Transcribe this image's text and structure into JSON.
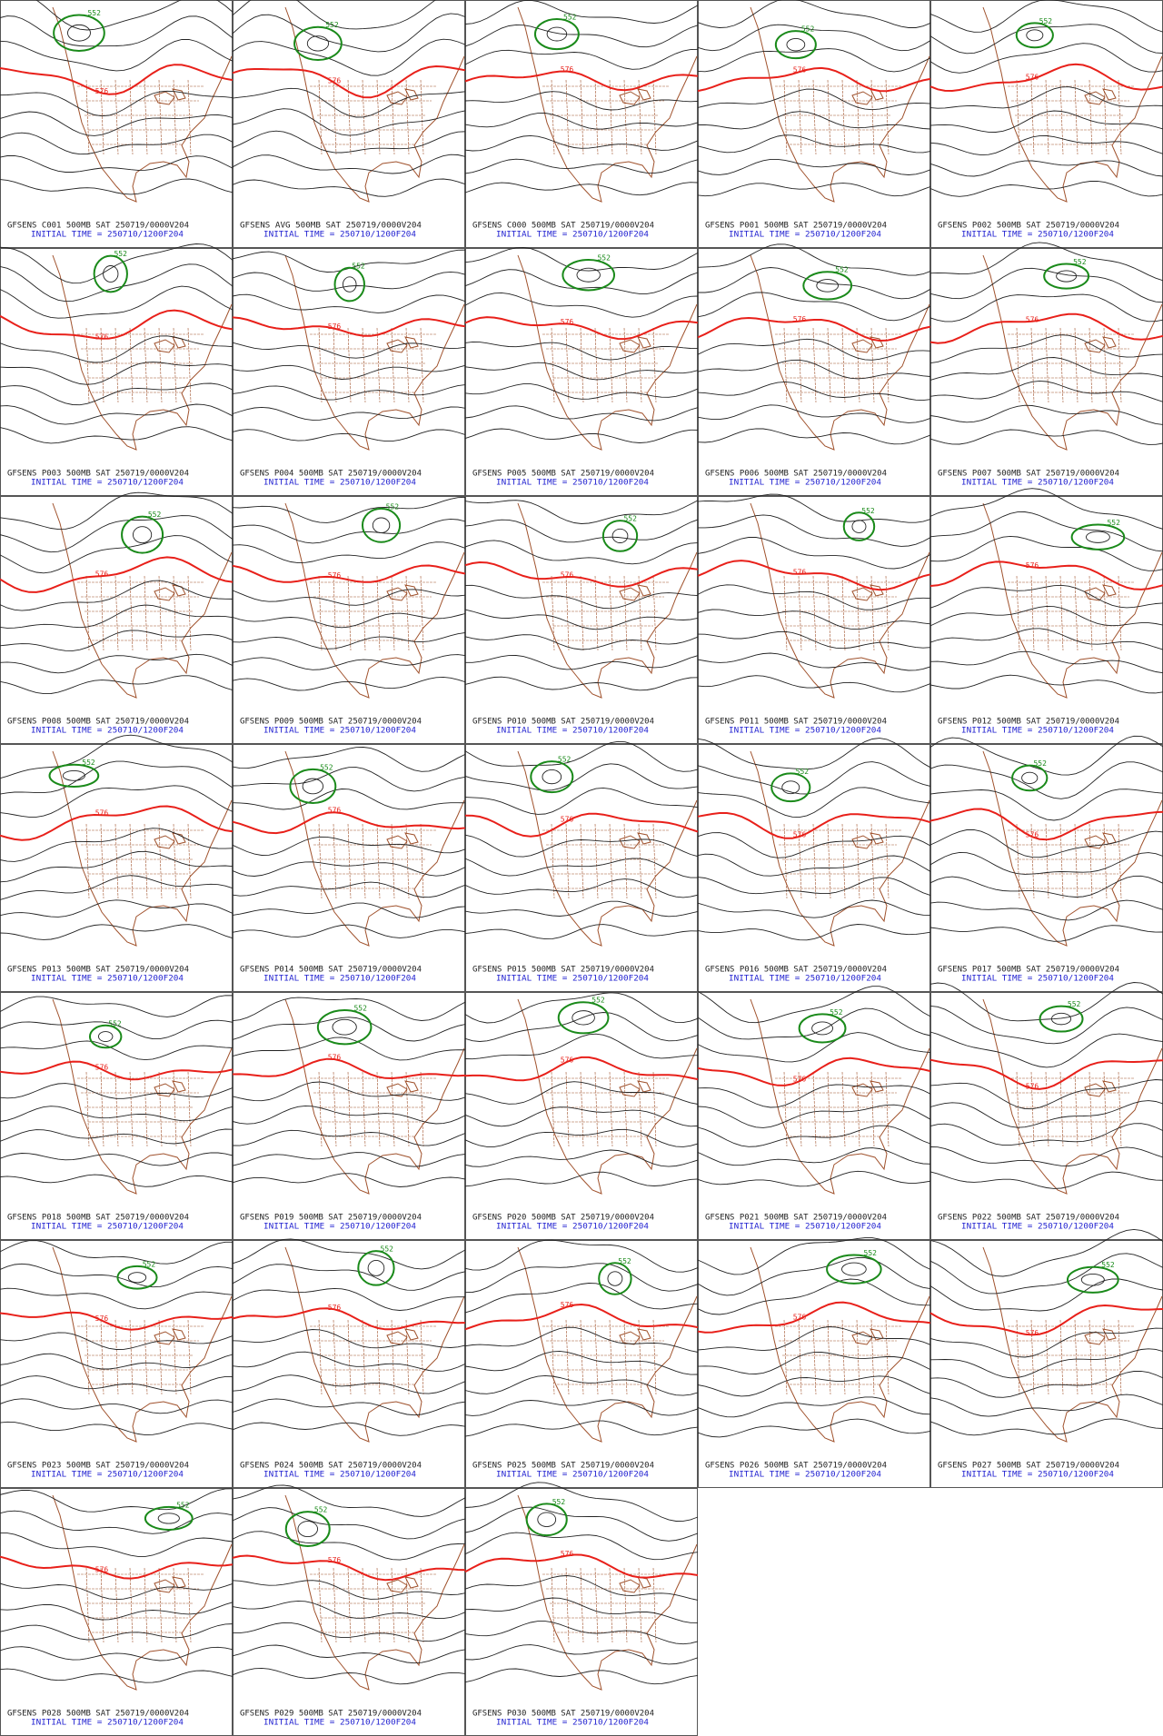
{
  "panels": [
    {
      "caption": "GFSENS C001 500MB SAT 250719/0000V204",
      "init": "INITIAL TIME = 250710/1200F204",
      "red_label": "576",
      "green_label": "552"
    },
    {
      "caption": "GFSENS AVG 500MB SAT 250719/0000V204",
      "init": "INITIAL TIME = 250710/1200F204",
      "red_label": "576",
      "green_label": "552"
    },
    {
      "caption": "GFSENS C000 500MB SAT 250719/0000V204",
      "init": "INITIAL TIME = 250710/1200F204",
      "red_label": "576",
      "green_label": "552"
    },
    {
      "caption": "GFSENS P001 500MB SAT 250719/0000V204",
      "init": "INITIAL TIME = 250710/1200F204",
      "red_label": "576",
      "green_label": "552"
    },
    {
      "caption": "GFSENS P002 500MB SAT 250719/0000V204",
      "init": "INITIAL TIME = 250710/1200F204",
      "red_label": "576",
      "green_label": "552"
    },
    {
      "caption": "GFSENS P003 500MB SAT 250719/0000V204",
      "init": "INITIAL TIME = 250710/1200F204",
      "red_label": "576",
      "green_label": "552"
    },
    {
      "caption": "GFSENS P004 500MB SAT 250719/0000V204",
      "init": "INITIAL TIME = 250710/1200F204",
      "red_label": "576",
      "green_label": "552"
    },
    {
      "caption": "GFSENS P005 500MB SAT 250719/0000V204",
      "init": "INITIAL TIME = 250710/1200F204",
      "red_label": "576",
      "green_label": "552"
    },
    {
      "caption": "GFSENS P006 500MB SAT 250719/0000V204",
      "init": "INITIAL TIME = 250710/1200F204",
      "red_label": "576",
      "green_label": "552"
    },
    {
      "caption": "GFSENS P007 500MB SAT 250719/0000V204",
      "init": "INITIAL TIME = 250710/1200F204",
      "red_label": "576",
      "green_label": "552"
    },
    {
      "caption": "GFSENS P008 500MB SAT 250719/0000V204",
      "init": "INITIAL TIME = 250710/1200F204",
      "red_label": "576",
      "green_label": "552"
    },
    {
      "caption": "GFSENS P009 500MB SAT 250719/0000V204",
      "init": "INITIAL TIME = 250710/1200F204",
      "red_label": "576",
      "green_label": "552"
    },
    {
      "caption": "GFSENS P010 500MB SAT 250719/0000V204",
      "init": "INITIAL TIME = 250710/1200F204",
      "red_label": "576",
      "green_label": "552"
    },
    {
      "caption": "GFSENS P011 500MB SAT 250719/0000V204",
      "init": "INITIAL TIME = 250710/1200F204",
      "red_label": "576",
      "green_label": "552"
    },
    {
      "caption": "GFSENS P012 500MB SAT 250719/0000V204",
      "init": "INITIAL TIME = 250710/1200F204",
      "red_label": "576",
      "green_label": "552"
    },
    {
      "caption": "GFSENS P013 500MB SAT 250719/0000V204",
      "init": "INITIAL TIME = 250710/1200F204",
      "red_label": "576",
      "green_label": "552"
    },
    {
      "caption": "GFSENS P014 500MB SAT 250719/0000V204",
      "init": "INITIAL TIME = 250710/1200F204",
      "red_label": "576",
      "green_label": "552"
    },
    {
      "caption": "GFSENS P015 500MB SAT 250719/0000V204",
      "init": "INITIAL TIME = 250710/1200F204",
      "red_label": "576",
      "green_label": "552"
    },
    {
      "caption": "GFSENS P016 500MB SAT 250719/0000V204",
      "init": "INITIAL TIME = 250710/1200F204",
      "red_label": "576",
      "green_label": "552"
    },
    {
      "caption": "GFSENS P017 500MB SAT 250719/0000V204",
      "init": "INITIAL TIME = 250710/1200F204",
      "red_label": "576",
      "green_label": "552"
    },
    {
      "caption": "GFSENS P018 500MB SAT 250719/0000V204",
      "init": "INITIAL TIME = 250710/1200F204",
      "red_label": "576",
      "green_label": "552"
    },
    {
      "caption": "GFSENS P019 500MB SAT 250719/0000V204",
      "init": "INITIAL TIME = 250710/1200F204",
      "red_label": "576",
      "green_label": "552"
    },
    {
      "caption": "GFSENS P020 500MB SAT 250719/0000V204",
      "init": "INITIAL TIME = 250710/1200F204",
      "red_label": "576",
      "green_label": "552"
    },
    {
      "caption": "GFSENS P021 500MB SAT 250719/0000V204",
      "init": "INITIAL TIME = 250710/1200F204",
      "red_label": "576",
      "green_label": "552"
    },
    {
      "caption": "GFSENS P022 500MB SAT 250719/0000V204",
      "init": "INITIAL TIME = 250710/1200F204",
      "red_label": "576",
      "green_label": "552"
    },
    {
      "caption": "GFSENS P023 500MB SAT 250719/0000V204",
      "init": "INITIAL TIME = 250710/1200F204",
      "red_label": "576",
      "green_label": "552"
    },
    {
      "caption": "GFSENS P024 500MB SAT 250719/0000V204",
      "init": "INITIAL TIME = 250710/1200F204",
      "red_label": "576",
      "green_label": "552"
    },
    {
      "caption": "GFSENS P025 500MB SAT 250719/0000V204",
      "init": "INITIAL TIME = 250710/1200F204",
      "red_label": "576",
      "green_label": "552"
    },
    {
      "caption": "GFSENS P026 500MB SAT 250719/0000V204",
      "init": "INITIAL TIME = 250710/1200F204",
      "red_label": "576",
      "green_label": "552"
    },
    {
      "caption": "GFSENS P027 500MB SAT 250719/0000V204",
      "init": "INITIAL TIME = 250710/1200F204",
      "red_label": "576",
      "green_label": "552"
    },
    {
      "caption": "GFSENS P028 500MB SAT 250719/0000V204",
      "init": "INITIAL TIME = 250710/1200F204",
      "red_label": "576",
      "green_label": "552"
    },
    {
      "caption": "GFSENS P029 500MB SAT 250719/0000V204",
      "init": "INITIAL TIME = 250710/1200F204",
      "red_label": "576",
      "green_label": "552"
    },
    {
      "caption": "GFSENS P030 500MB SAT 250719/0000V204",
      "init": "INITIAL TIME = 250710/1200F204",
      "red_label": "576",
      "green_label": "552"
    }
  ]
}
